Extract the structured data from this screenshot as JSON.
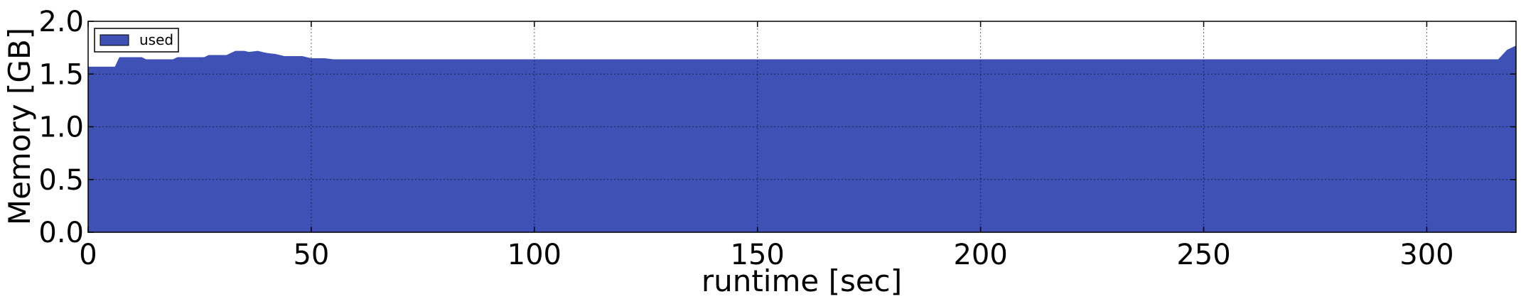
{
  "chart_data": {
    "type": "area",
    "title": "",
    "xlabel": "runtime [sec]",
    "ylabel": "Memory [GB]",
    "xlim": [
      0,
      320
    ],
    "ylim": [
      0,
      2.0
    ],
    "xticks": [
      0,
      50,
      100,
      150,
      200,
      250,
      300
    ],
    "yticks": [
      0.0,
      0.5,
      1.0,
      1.5,
      2.0
    ],
    "xtick_labels": [
      "0",
      "50",
      "100",
      "150",
      "200",
      "250",
      "300"
    ],
    "ytick_labels": [
      "0.0",
      "0.5",
      "1.0",
      "1.5",
      "2.0"
    ],
    "grid": true,
    "legend_position": "top-left",
    "series": [
      {
        "name": "used",
        "color": "#3f51b5",
        "x": [
          0,
          6,
          7,
          12,
          13,
          19,
          20,
          26,
          27,
          31,
          33,
          35,
          36,
          38,
          40,
          42,
          44,
          48,
          50,
          53,
          55,
          60,
          80,
          100,
          150,
          200,
          250,
          300,
          316,
          318,
          320
        ],
        "y": [
          1.57,
          1.57,
          1.66,
          1.66,
          1.64,
          1.64,
          1.66,
          1.66,
          1.68,
          1.68,
          1.72,
          1.72,
          1.71,
          1.72,
          1.7,
          1.69,
          1.67,
          1.67,
          1.65,
          1.65,
          1.64,
          1.64,
          1.64,
          1.64,
          1.64,
          1.64,
          1.64,
          1.64,
          1.64,
          1.73,
          1.77
        ]
      }
    ]
  }
}
